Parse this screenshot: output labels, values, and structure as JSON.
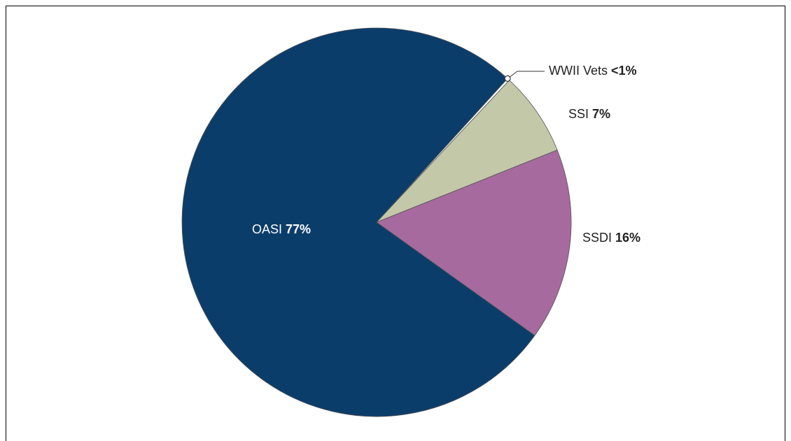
{
  "chart_data": {
    "type": "pie",
    "categories": [
      "WWII Vets",
      "SSI",
      "SSDI",
      "OASI"
    ],
    "values": [
      0.2,
      7,
      16,
      77
    ],
    "value_labels": [
      "<1%",
      "7%",
      "16%",
      "77%"
    ],
    "colors": [
      "#ffffff",
      "#c3c8a9",
      "#a66a9e",
      "#0b3d6a"
    ]
  }
}
